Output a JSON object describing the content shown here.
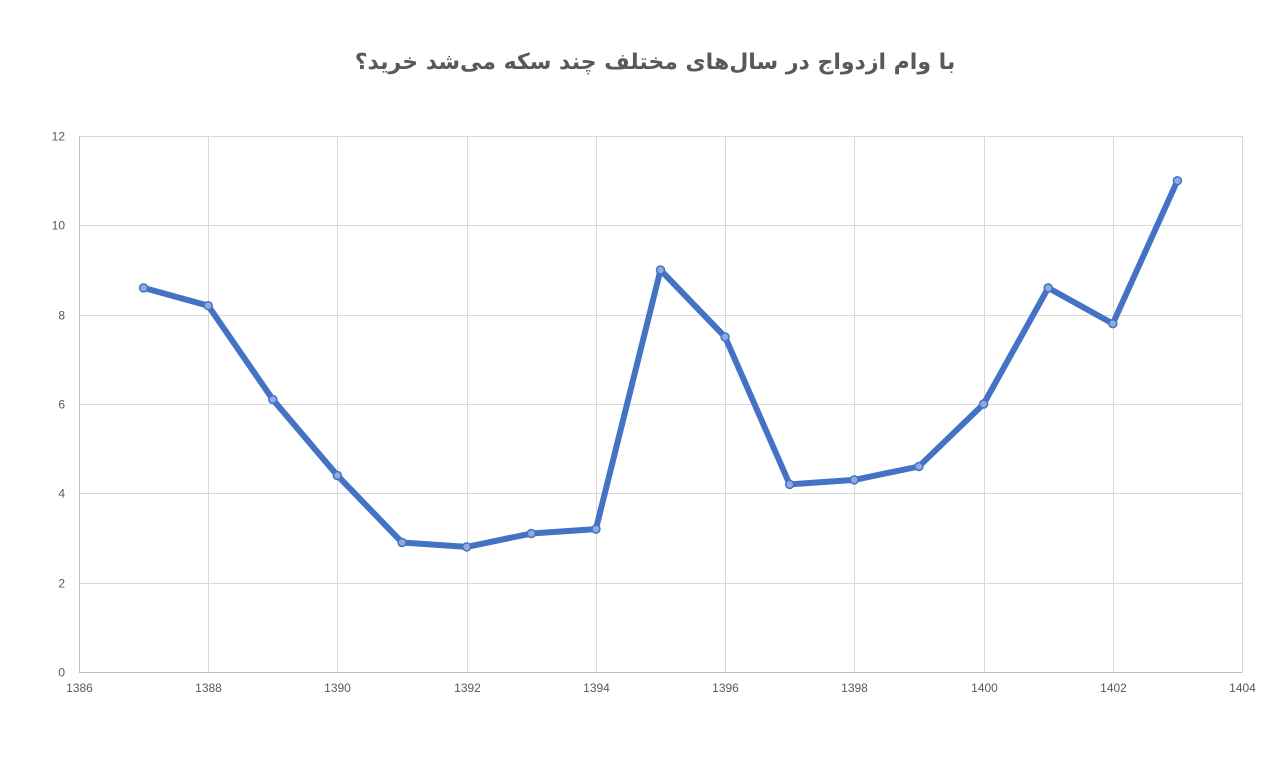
{
  "chart_data": {
    "type": "scatter",
    "title": "با وام ازدواج در سال‌های مختلف چند سکه می‌شد خرید؟",
    "xlabel": "",
    "ylabel": "",
    "xlim": [
      1386,
      1404
    ],
    "ylim": [
      0,
      12
    ],
    "x_ticks": [
      1386,
      1388,
      1390,
      1392,
      1394,
      1396,
      1398,
      1400,
      1402,
      1404
    ],
    "y_ticks": [
      0,
      2,
      4,
      6,
      8,
      10,
      12
    ],
    "grid": true,
    "legend": "none",
    "color": "#4472c4",
    "series": [
      {
        "x": [
          1387,
          1388,
          1389,
          1390,
          1391,
          1392,
          1393,
          1394,
          1395,
          1396,
          1397,
          1398,
          1399,
          1400,
          1401,
          1402,
          1403
        ],
        "y": [
          8.6,
          8.2,
          6.1,
          4.4,
          2.9,
          2.8,
          3.1,
          3.2,
          9.0,
          7.5,
          4.2,
          4.3,
          4.6,
          6.0,
          8.6,
          7.8,
          11.0
        ]
      }
    ]
  }
}
